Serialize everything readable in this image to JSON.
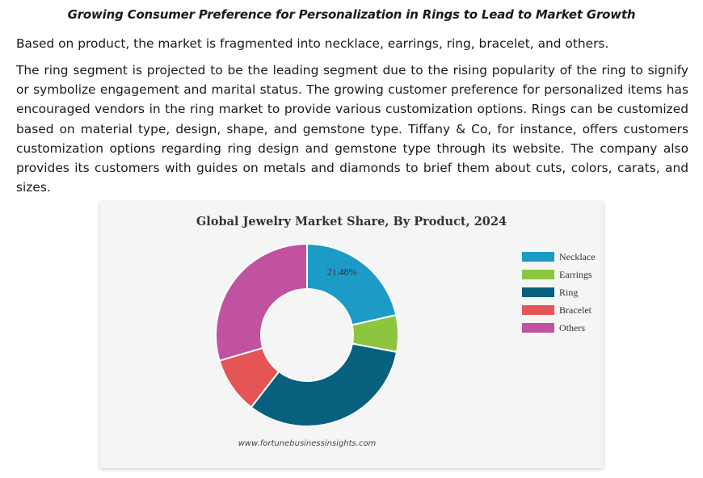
{
  "article": {
    "heading": "Growing Consumer Preference for Personalization in Rings to Lead to Market Growth",
    "paragraph1": "Based on product, the market is fragmented into necklace, earrings, ring, bracelet, and others.",
    "paragraph2": "The ring segment is projected to be the leading segment due to the rising popularity of the ring to signify or symbolize engagement and marital status. The growing customer preference for personalized items has encouraged vendors in the ring market to provide various customization options. Rings can be customized based on material type, design, shape, and gemstone type. Tiffany & Co, for instance, offers customers customization options regarding ring design and gemstone type through its website. The company also provides its customers with guides on metals and diamonds to brief them about cuts, colors, carats, and sizes."
  },
  "chart_data": {
    "type": "pie",
    "donut": true,
    "title": "Global Jewelry Market Share, By Product, 2024",
    "categories": [
      "Necklace",
      "Earrings",
      "Ring",
      "Bracelet",
      "Others"
    ],
    "values": [
      21.48,
      6.5,
      32.5,
      10.0,
      29.52
    ],
    "colors": [
      "#1b9bc6",
      "#8cc63f",
      "#08607f",
      "#e55555",
      "#c0529f"
    ],
    "data_labels": [
      "21.48%",
      "",
      "",
      "",
      ""
    ],
    "legend_position": "right",
    "source": "www.fortunebusinessinsights.com"
  }
}
